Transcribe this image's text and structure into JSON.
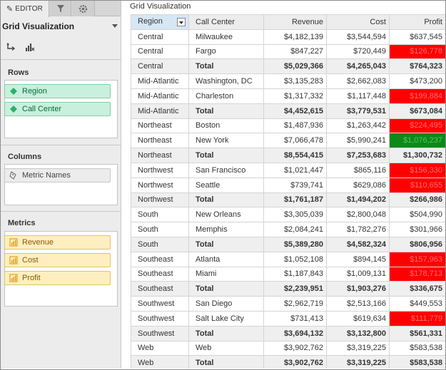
{
  "tabs": {
    "editor_label": "EDITOR"
  },
  "panel": {
    "title": "Grid Visualization"
  },
  "rows": {
    "label": "Rows",
    "items": [
      {
        "label": "Region"
      },
      {
        "label": "Call Center"
      }
    ]
  },
  "columns": {
    "label": "Columns",
    "items": [
      {
        "label": "Metric Names"
      }
    ]
  },
  "metrics": {
    "label": "Metrics",
    "items": [
      {
        "label": "Revenue"
      },
      {
        "label": "Cost"
      },
      {
        "label": "Profit"
      }
    ]
  },
  "viz": {
    "title": "Grid Visualization"
  },
  "colors": {
    "negative": "#ff0000",
    "positive": "#0b8a17",
    "attribute": "#c8f0dc",
    "metric": "#ffefc0"
  },
  "grid": {
    "headers": [
      "Region",
      "Call Center",
      "Revenue",
      "Cost",
      "Profit"
    ],
    "rows": [
      {
        "region": "Central",
        "center": "Milwaukee",
        "revenue": "$4,182,139",
        "cost": "$3,544,594",
        "profit": "$637,545",
        "total": false,
        "flag": ""
      },
      {
        "region": "Central",
        "center": "Fargo",
        "revenue": "$847,227",
        "cost": "$720,449",
        "profit": "$126,778",
        "total": false,
        "flag": "neg"
      },
      {
        "region": "Central",
        "center": "Total",
        "revenue": "$5,029,366",
        "cost": "$4,265,043",
        "profit": "$764,323",
        "total": true,
        "flag": ""
      },
      {
        "region": "Mid-Atlantic",
        "center": "Washington, DC",
        "revenue": "$3,135,283",
        "cost": "$2,662,083",
        "profit": "$473,200",
        "total": false,
        "flag": ""
      },
      {
        "region": "Mid-Atlantic",
        "center": "Charleston",
        "revenue": "$1,317,332",
        "cost": "$1,117,448",
        "profit": "$199,884",
        "total": false,
        "flag": "neg"
      },
      {
        "region": "Mid-Atlantic",
        "center": "Total",
        "revenue": "$4,452,615",
        "cost": "$3,779,531",
        "profit": "$673,084",
        "total": true,
        "flag": ""
      },
      {
        "region": "Northeast",
        "center": "Boston",
        "revenue": "$1,487,936",
        "cost": "$1,263,442",
        "profit": "$224,495",
        "total": false,
        "flag": "neg"
      },
      {
        "region": "Northeast",
        "center": "New York",
        "revenue": "$7,066,478",
        "cost": "$5,990,241",
        "profit": "$1,076,237",
        "total": false,
        "flag": "pos"
      },
      {
        "region": "Northeast",
        "center": "Total",
        "revenue": "$8,554,415",
        "cost": "$7,253,683",
        "profit": "$1,300,732",
        "total": true,
        "flag": ""
      },
      {
        "region": "Northwest",
        "center": "San Francisco",
        "revenue": "$1,021,447",
        "cost": "$865,116",
        "profit": "$156,330",
        "total": false,
        "flag": "neg"
      },
      {
        "region": "Northwest",
        "center": "Seattle",
        "revenue": "$739,741",
        "cost": "$629,086",
        "profit": "$110,655",
        "total": false,
        "flag": "neg"
      },
      {
        "region": "Northwest",
        "center": "Total",
        "revenue": "$1,761,187",
        "cost": "$1,494,202",
        "profit": "$266,986",
        "total": true,
        "flag": ""
      },
      {
        "region": "South",
        "center": "New Orleans",
        "revenue": "$3,305,039",
        "cost": "$2,800,048",
        "profit": "$504,990",
        "total": false,
        "flag": ""
      },
      {
        "region": "South",
        "center": "Memphis",
        "revenue": "$2,084,241",
        "cost": "$1,782,276",
        "profit": "$301,966",
        "total": false,
        "flag": ""
      },
      {
        "region": "South",
        "center": "Total",
        "revenue": "$5,389,280",
        "cost": "$4,582,324",
        "profit": "$806,956",
        "total": true,
        "flag": ""
      },
      {
        "region": "Southeast",
        "center": "Atlanta",
        "revenue": "$1,052,108",
        "cost": "$894,145",
        "profit": "$157,963",
        "total": false,
        "flag": "neg"
      },
      {
        "region": "Southeast",
        "center": "Miami",
        "revenue": "$1,187,843",
        "cost": "$1,009,131",
        "profit": "$178,713",
        "total": false,
        "flag": "neg"
      },
      {
        "region": "Southeast",
        "center": "Total",
        "revenue": "$2,239,951",
        "cost": "$1,903,276",
        "profit": "$336,675",
        "total": true,
        "flag": ""
      },
      {
        "region": "Southwest",
        "center": "San Diego",
        "revenue": "$2,962,719",
        "cost": "$2,513,166",
        "profit": "$449,553",
        "total": false,
        "flag": ""
      },
      {
        "region": "Southwest",
        "center": "Salt Lake City",
        "revenue": "$731,413",
        "cost": "$619,634",
        "profit": "$111,779",
        "total": false,
        "flag": "neg"
      },
      {
        "region": "Southwest",
        "center": "Total",
        "revenue": "$3,694,132",
        "cost": "$3,132,800",
        "profit": "$561,331",
        "total": true,
        "flag": ""
      },
      {
        "region": "Web",
        "center": "Web",
        "revenue": "$3,902,762",
        "cost": "$3,319,225",
        "profit": "$583,538",
        "total": false,
        "flag": ""
      },
      {
        "region": "Web",
        "center": "Total",
        "revenue": "$3,902,762",
        "cost": "$3,319,225",
        "profit": "$583,538",
        "total": true,
        "flag": ""
      }
    ]
  }
}
